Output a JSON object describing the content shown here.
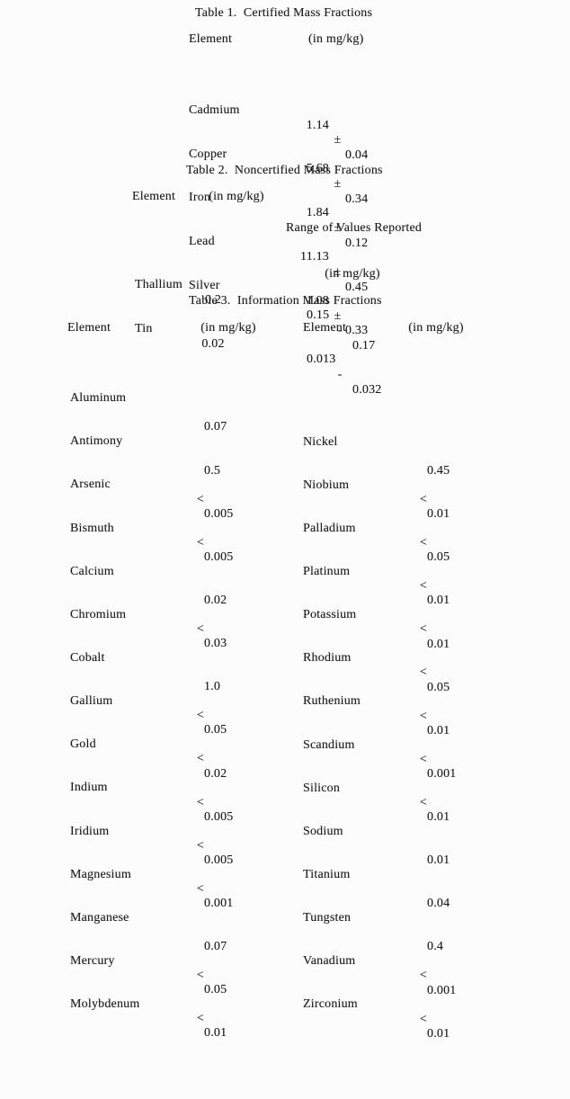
{
  "page": {
    "background": "#fcfcfc",
    "text_color": "#1c1c1c"
  },
  "table1": {
    "title": "Table 1.  Certified Mass Fractions",
    "headers": {
      "element": "Element",
      "value": "(in mg/kg)"
    },
    "pm": "±",
    "rows": [
      {
        "element": "Cadmium",
        "value": "1.14",
        "err": "0.04"
      },
      {
        "element": "Copper",
        "value": "5.68",
        "err": "0.34"
      },
      {
        "element": "Iron",
        "value": "1.84",
        "err": "0.12"
      },
      {
        "element": "Lead",
        "value": "11.13",
        "err": "0.45"
      },
      {
        "element": "Silver",
        "value": "1.08",
        "err": "0.33"
      }
    ]
  },
  "table2": {
    "title": "Table 2.  Noncertified Mass Fractions",
    "headers": {
      "element": "Element",
      "value": "(in mg/kg)",
      "range_line1": "Range of Values Reported",
      "range_line2": "(in mg/kg)"
    },
    "dash": "-",
    "rows": [
      {
        "element": "Thallium",
        "value": "0.2",
        "low": "0.15",
        "high": "0.17"
      },
      {
        "element": "Tin",
        "value": "0.02",
        "low": "0.013",
        "high": "0.032"
      }
    ]
  },
  "table3": {
    "title": "Table 3.  Information Mass Fractions",
    "headers": {
      "element_left": "Element",
      "value_left": "(in mg/kg)",
      "element_right": "Element",
      "value_right": "(in mg/kg)"
    },
    "rows": [
      {
        "left": {
          "element": "Aluminum",
          "lt": "",
          "value": "0.07"
        },
        "right": {
          "element": "Nickel",
          "lt": "",
          "value": "0.45"
        }
      },
      {
        "left": {
          "element": "Antimony",
          "lt": "",
          "value": "0.5"
        },
        "right": {
          "element": "Niobium",
          "lt": "<",
          "value": "0.01"
        }
      },
      {
        "left": {
          "element": "Arsenic",
          "lt": "<",
          "value": "0.005"
        },
        "right": {
          "element": "Palladium",
          "lt": "<",
          "value": "0.05"
        }
      },
      {
        "left": {
          "element": "Bismuth",
          "lt": "<",
          "value": "0.005"
        },
        "right": {
          "element": "Platinum",
          "lt": "<",
          "value": "0.01"
        }
      },
      {
        "left": {
          "element": "Calcium",
          "lt": "",
          "value": "0.02"
        },
        "right": {
          "element": "Potassium",
          "lt": "<",
          "value": "0.01"
        }
      },
      {
        "left": {
          "element": "Chromium",
          "lt": "<",
          "value": "0.03"
        },
        "right": {
          "element": "Rhodium",
          "lt": "<",
          "value": "0.05"
        }
      },
      {
        "left": {
          "element": "Cobalt",
          "lt": "",
          "value": "1.0"
        },
        "right": {
          "element": "Ruthenium",
          "lt": "<",
          "value": "0.01"
        }
      },
      {
        "left": {
          "element": "Gallium",
          "lt": "<",
          "value": "0.05"
        },
        "right": {
          "element": "Scandium",
          "lt": "<",
          "value": "0.001"
        }
      },
      {
        "left": {
          "element": "Gold",
          "lt": "<",
          "value": "0.02"
        },
        "right": {
          "element": "Silicon",
          "lt": "<",
          "value": "0.01"
        }
      },
      {
        "left": {
          "element": "Indium",
          "lt": "<",
          "value": "0.005"
        },
        "right": {
          "element": "Sodium",
          "lt": "",
          "value": "0.01"
        }
      },
      {
        "left": {
          "element": "Iridium",
          "lt": "<",
          "value": "0.005"
        },
        "right": {
          "element": "Titanium",
          "lt": "",
          "value": "0.04"
        }
      },
      {
        "left": {
          "element": "Magnesium",
          "lt": "<",
          "value": "0.001"
        },
        "right": {
          "element": "Tungsten",
          "lt": "",
          "value": "0.4"
        }
      },
      {
        "left": {
          "element": "Manganese",
          "lt": "",
          "value": "0.07"
        },
        "right": {
          "element": "Vanadium",
          "lt": "<",
          "value": "0.001"
        }
      },
      {
        "left": {
          "element": "Mercury",
          "lt": "<",
          "value": "0.05"
        },
        "right": {
          "element": "Zirconium",
          "lt": "<",
          "value": "0.01"
        }
      },
      {
        "left": {
          "element": "Molybdenum",
          "lt": "<",
          "value": "0.01"
        },
        "right": {
          "element": "",
          "lt": "",
          "value": ""
        }
      }
    ]
  }
}
